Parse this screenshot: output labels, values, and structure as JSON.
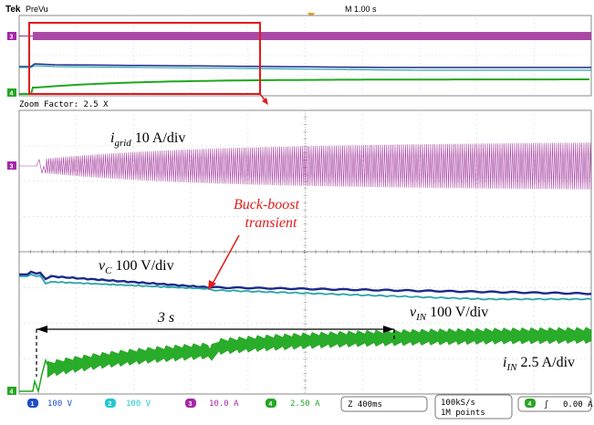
{
  "header": {
    "brand": "Tek",
    "mode": "PreVu",
    "timebase": "M 1.00 s"
  },
  "zoom": {
    "label": "Zoom Factor: 2.5 X"
  },
  "channel_markers": {
    "grid": "3",
    "current": "4"
  },
  "annotations": {
    "igrid_var": "i",
    "igrid_sub": "grid",
    "igrid_scale": " 10 A/div",
    "vc_var": "v",
    "vc_sub": "C",
    "vc_scale": " 100 V/div",
    "vin_var": "v",
    "vin_sub": "IN",
    "vin_scale": " 100 V/div",
    "iin_var": "i",
    "iin_sub": "IN",
    "iin_scale": " 2.5 A/div",
    "transient_line1": "Buck-boost",
    "transient_line2": "transient",
    "duration": "3 s"
  },
  "status_bar": {
    "ch1_num": "1",
    "ch1_val": "100 V",
    "ch2_num": "2",
    "ch2_val": "100 V",
    "ch3_num": "3",
    "ch3_val": "10.0 A",
    "ch4_num": "4",
    "ch4_val": "2.50 A",
    "horizontal": "Z 400ms",
    "sample_rate": "100kS/s",
    "record_length": "1M points",
    "trig_num": "4",
    "trig_slope": "ʃ",
    "trig_level": "0.00 A"
  },
  "colors": {
    "grid_current": "#9c2a96",
    "v_c": "#1c2a8a",
    "v_in": "#2aa3a8",
    "i_in": "#1ea81e",
    "highlight": "#e31a1a",
    "ch1": "#1f4ec8",
    "ch2": "#23c8cf",
    "ch3": "#a526a8",
    "ch4": "#26a626"
  }
}
